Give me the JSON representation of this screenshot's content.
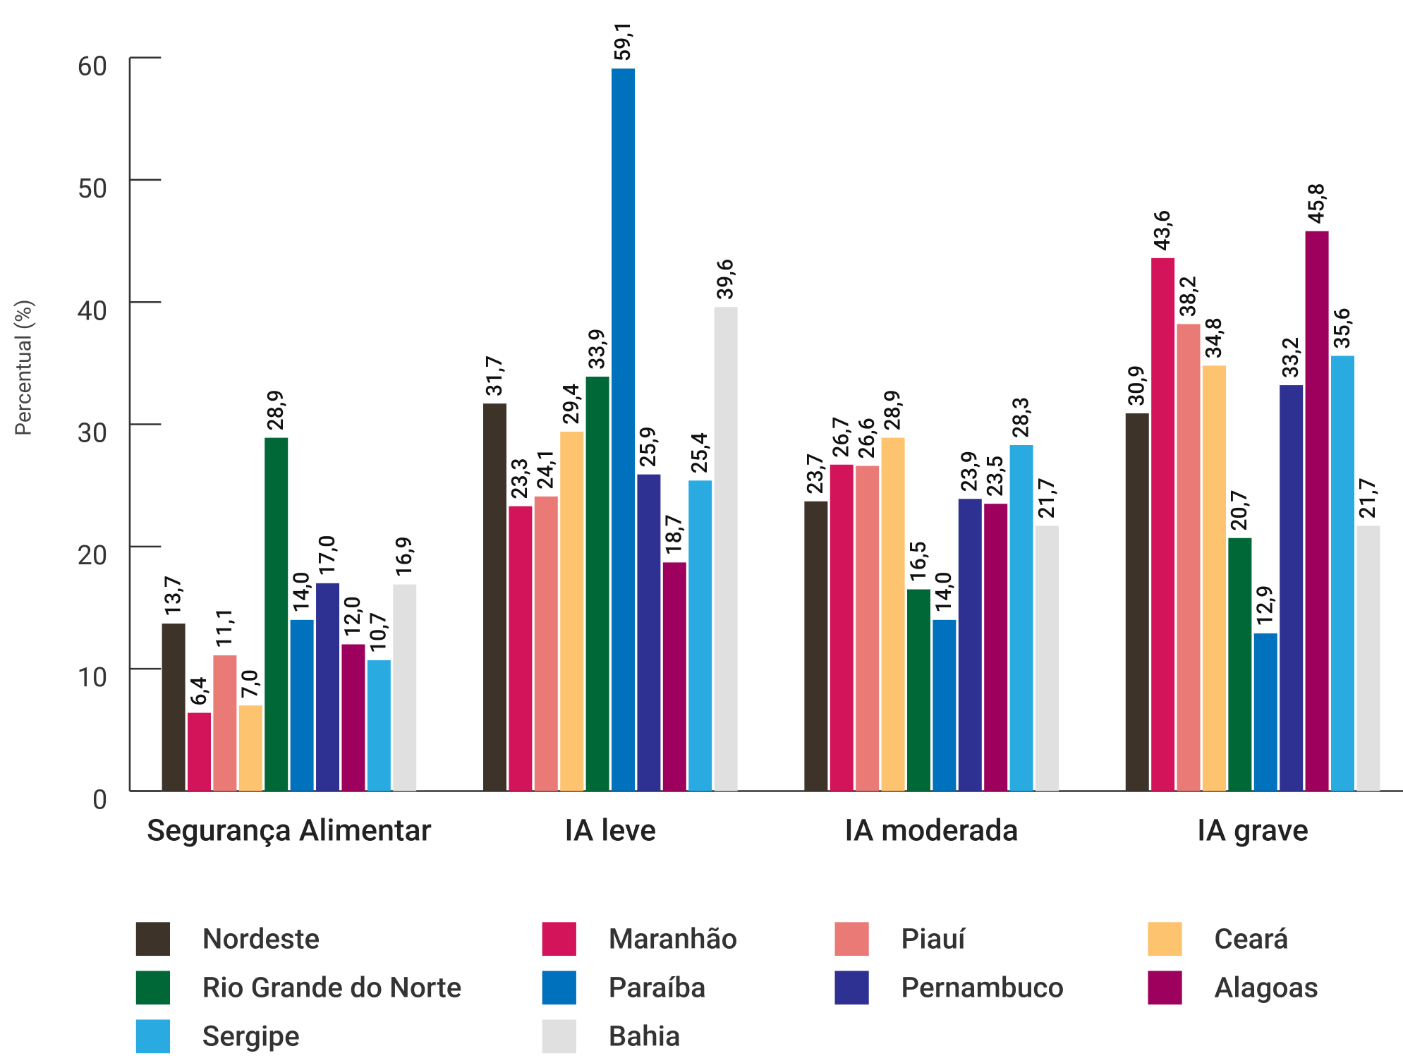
{
  "chart_data": {
    "type": "bar",
    "y_axis_label": "Percentual (%)",
    "categories": [
      "Segurança Alimentar",
      "IA leve",
      "IA moderada",
      "IA grave"
    ],
    "ylim": [
      0,
      60
    ],
    "yticks": [
      0,
      10,
      20,
      30,
      40,
      50,
      60
    ],
    "series": [
      {
        "name": "Nordeste",
        "color": "#3d3329",
        "values": [
          13.7,
          31.7,
          23.7,
          30.9
        ],
        "value_labels": [
          "13,7",
          "31,7",
          "23,7",
          "30,9"
        ]
      },
      {
        "name": "Maranhão",
        "color": "#d4145a",
        "values": [
          6.4,
          23.3,
          26.7,
          43.6
        ],
        "value_labels": [
          "6,4",
          "23,3",
          "26,7",
          "43,6"
        ]
      },
      {
        "name": "Piauí",
        "color": "#e97a76",
        "values": [
          11.1,
          24.1,
          26.6,
          38.2
        ],
        "value_labels": [
          "11,1",
          "24,1",
          "26,6",
          "38,2"
        ]
      },
      {
        "name": "Ceará",
        "color": "#fec36e",
        "values": [
          7.0,
          29.4,
          28.9,
          34.8
        ],
        "value_labels": [
          "7,0",
          "29,4",
          "28,9",
          "34,8"
        ]
      },
      {
        "name": "Rio Grande do Norte",
        "color": "#006837",
        "values": [
          28.9,
          33.9,
          16.5,
          20.7
        ],
        "value_labels": [
          "28,9",
          "33,9",
          "16,5",
          "20,7"
        ]
      },
      {
        "name": "Paraíba",
        "color": "#0071bc",
        "values": [
          14.0,
          59.1,
          14.0,
          12.9
        ],
        "value_labels": [
          "14,0",
          "59,1",
          "14,0",
          "12,9"
        ]
      },
      {
        "name": "Pernambuco",
        "color": "#2e3192",
        "values": [
          17.0,
          25.9,
          23.9,
          33.2
        ],
        "value_labels": [
          "17,0",
          "25,9",
          "23,9",
          "33,2"
        ]
      },
      {
        "name": "Alagoas",
        "color": "#9e005d",
        "values": [
          12.0,
          18.7,
          23.5,
          45.8
        ],
        "value_labels": [
          "12,0",
          "18,7",
          "23,5",
          "45,8"
        ]
      },
      {
        "name": "Sergipe",
        "color": "#29abe2",
        "values": [
          10.7,
          25.4,
          28.3,
          35.6
        ],
        "value_labels": [
          "10,7",
          "25,4",
          "28,3",
          "35,6"
        ]
      },
      {
        "name": "Bahia",
        "color": "#e0e0e0",
        "values": [
          16.9,
          39.6,
          21.7,
          21.7
        ],
        "value_labels": [
          "16,9",
          "39,6",
          "21,7",
          "21,7"
        ]
      }
    ]
  }
}
